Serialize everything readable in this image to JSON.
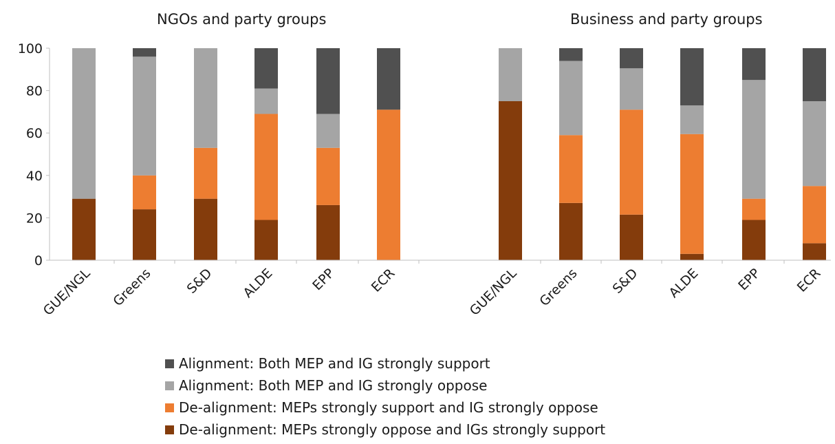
{
  "chart_data": {
    "type": "bar",
    "stacked": true,
    "ylim": [
      0,
      100
    ],
    "yticks": [
      0,
      20,
      40,
      60,
      80,
      100
    ],
    "grid": false,
    "legend_placement": "bottom",
    "panels": [
      {
        "subtitle": "NGOs and party groups",
        "categories": [
          "GUE/NGL",
          "Greens",
          "S&D",
          "ALDE",
          "EPP",
          "ECR"
        ]
      },
      {
        "subtitle": "Business and party groups",
        "categories": [
          "GUE/NGL",
          "Greens",
          "S&D",
          "ALDE",
          "EPP",
          "ECR"
        ]
      }
    ],
    "series": [
      {
        "name": "De-alignment: MEPs strongly oppose and IGs strongly support",
        "color": "#843c0c",
        "values": [
          [
            29,
            24,
            29,
            19,
            26,
            0
          ],
          [
            75,
            27,
            21.5,
            3,
            19,
            8
          ]
        ]
      },
      {
        "name": "De-alignment: MEPs strongly support and IG strongly oppose",
        "color": "#ed7d31",
        "values": [
          [
            0,
            16,
            24,
            50,
            27,
            71
          ],
          [
            0,
            32,
            49.5,
            56.5,
            10,
            27
          ]
        ]
      },
      {
        "name": "Alignment: Both MEP and IG strongly oppose",
        "color": "#a5a5a5",
        "values": [
          [
            71,
            56,
            47,
            12,
            16,
            0
          ],
          [
            25,
            35,
            19.5,
            13.5,
            56,
            40
          ]
        ]
      },
      {
        "name": "Alignment: Both MEP and IG strongly support",
        "color": "#505050",
        "values": [
          [
            0,
            4,
            0,
            19,
            31,
            29
          ],
          [
            0,
            6,
            9.5,
            27,
            15,
            25
          ]
        ]
      }
    ],
    "legend_order": [
      3,
      2,
      1,
      0
    ]
  }
}
